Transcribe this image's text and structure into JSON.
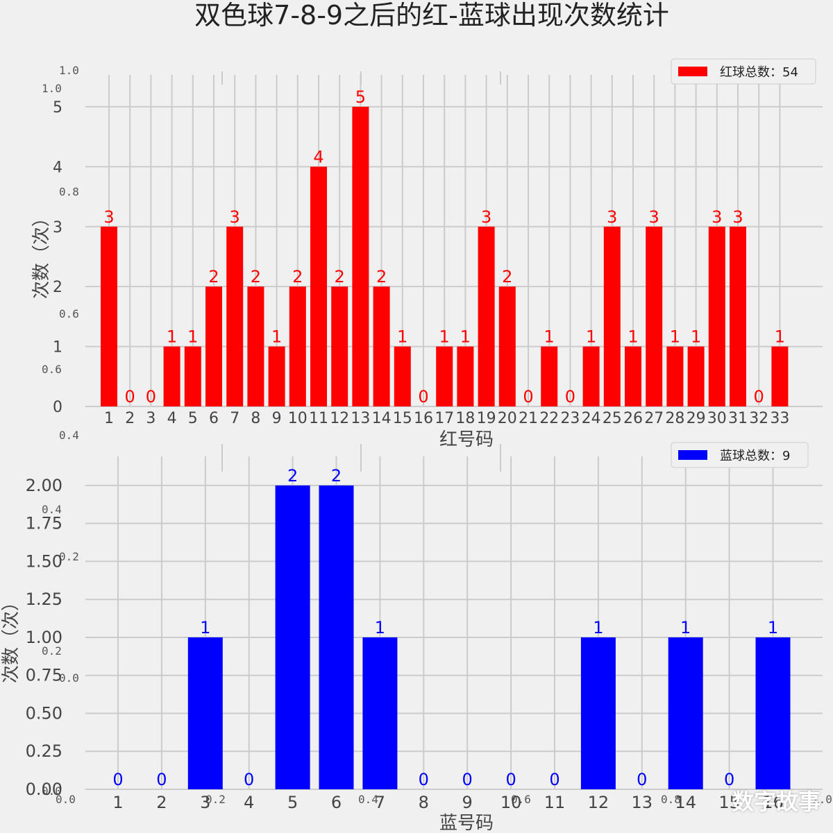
{
  "figure": {
    "title": "双色球7-8-9之后的红-蓝球出现次数统计"
  },
  "watermark": "数字故事",
  "colors": {
    "red_bar": "#ff0000",
    "blue_bar": "#0000ff",
    "background": "#f0f0f0",
    "grid": "#cbcbcb",
    "text": "#333333"
  },
  "ghost_axis_ticks": {
    "x": [
      "0.0",
      "0.2",
      "0.4",
      "0.6",
      "0.8",
      "1.0"
    ],
    "y": [
      "0.0",
      "0.2",
      "0.4",
      "0.6",
      "0.8",
      "1.0"
    ]
  },
  "chart_data": [
    {
      "type": "bar",
      "name": "red",
      "categories": [
        "1",
        "2",
        "3",
        "4",
        "5",
        "6",
        "7",
        "8",
        "9",
        "10",
        "11",
        "12",
        "13",
        "14",
        "15",
        "16",
        "17",
        "18",
        "19",
        "20",
        "21",
        "22",
        "23",
        "24",
        "25",
        "26",
        "27",
        "28",
        "29",
        "30",
        "31",
        "32",
        "33"
      ],
      "values": [
        3,
        0,
        0,
        1,
        1,
        2,
        3,
        2,
        1,
        2,
        4,
        2,
        5,
        2,
        1,
        0,
        1,
        1,
        3,
        2,
        0,
        1,
        0,
        1,
        3,
        1,
        3,
        1,
        1,
        3,
        3,
        0,
        1
      ],
      "xlabel": "红号码",
      "ylabel": "次数（次）",
      "ylim": [
        0,
        5.3
      ],
      "yticks": [
        "0",
        "1",
        "2",
        "3",
        "4",
        "5"
      ],
      "legend": "红球总数：54",
      "legend_position": "top-right",
      "grid": true
    },
    {
      "type": "bar",
      "name": "blue",
      "categories": [
        "1",
        "2",
        "3",
        "4",
        "5",
        "6",
        "7",
        "8",
        "9",
        "10",
        "11",
        "12",
        "13",
        "14",
        "15",
        "16"
      ],
      "values": [
        0,
        0,
        1,
        0,
        2,
        2,
        1,
        0,
        0,
        0,
        0,
        1,
        0,
        1,
        0,
        1
      ],
      "xlabel": "蓝号码",
      "ylabel": "次数（次）",
      "ylim": [
        0,
        2.1
      ],
      "yticks": [
        "0.00",
        "0.25",
        "0.50",
        "0.75",
        "1.00",
        "1.25",
        "1.50",
        "1.75",
        "2.00"
      ],
      "legend": "蓝球总数：9",
      "legend_position": "top-right",
      "grid": true
    }
  ]
}
